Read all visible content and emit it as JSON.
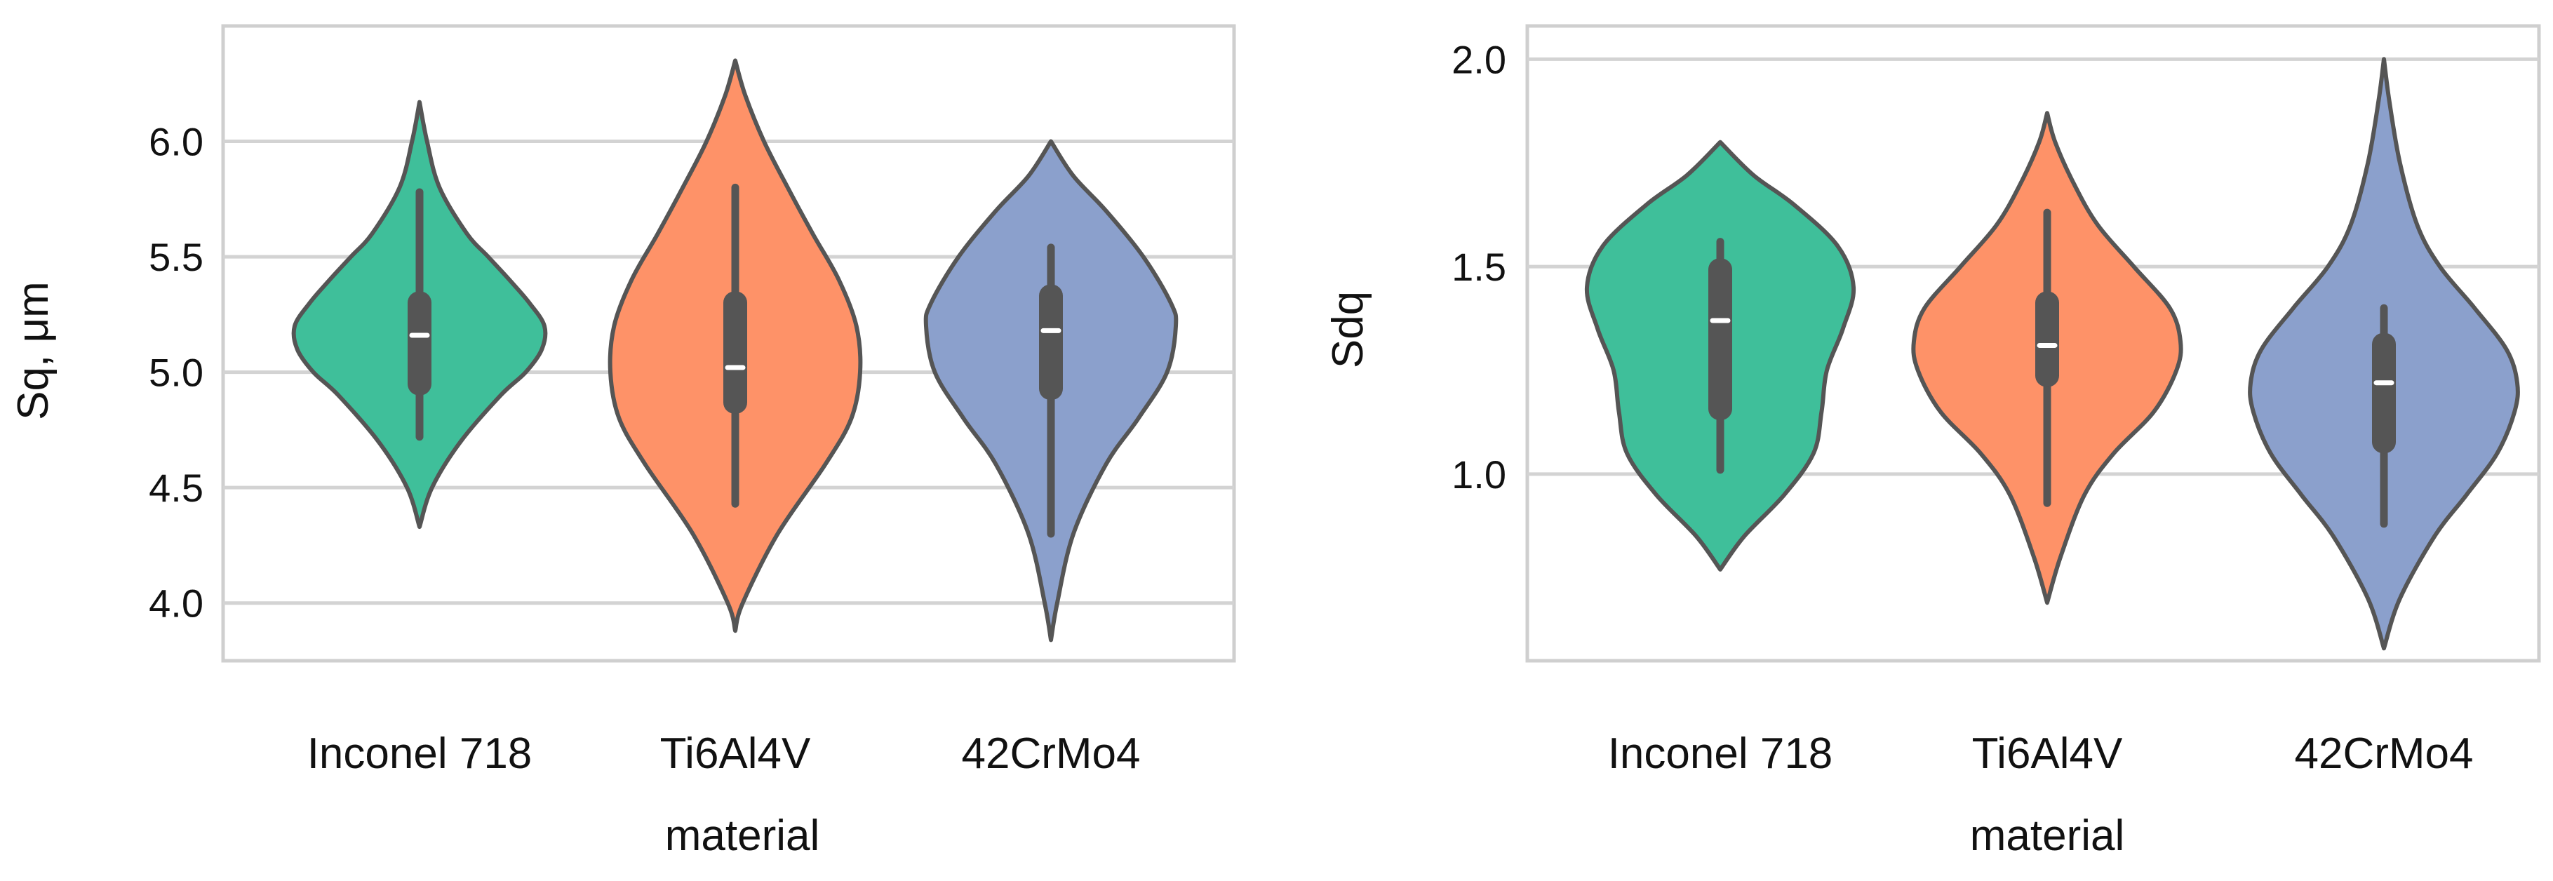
{
  "chart_data": [
    {
      "type": "violin",
      "xlabel": "material",
      "ylabel": "Sq, μm",
      "categories": [
        "Inconel 718",
        "Ti6Al4V",
        "42CrMo4"
      ],
      "yticks": [
        4.0,
        4.5,
        5.0,
        5.5,
        6.0
      ],
      "ytick_labels": [
        "4.0",
        "4.5",
        "5.0",
        "5.5",
        "6.0"
      ],
      "ylim": [
        3.75,
        6.5
      ],
      "grid": "horizontal",
      "colors": [
        "#3fbf9a",
        "#fe9268",
        "#8ba0cc"
      ],
      "violins": [
        {
          "min": 4.33,
          "max": 6.17,
          "whisker_low": 4.72,
          "q1": 4.9,
          "median": 5.16,
          "q3": 5.35,
          "whisker_high": 5.78,
          "density_y": [
            4.33,
            4.5,
            4.7,
            4.9,
            5.0,
            5.1,
            5.2,
            5.3,
            5.4,
            5.5,
            5.6,
            5.8,
            6.0,
            6.17
          ],
          "density_w": [
            0.0,
            0.1,
            0.33,
            0.65,
            0.85,
            0.98,
            1.0,
            0.88,
            0.72,
            0.55,
            0.38,
            0.16,
            0.06,
            0.0
          ]
        },
        {
          "min": 3.88,
          "max": 6.35,
          "whisker_low": 4.43,
          "q1": 4.82,
          "median": 5.02,
          "q3": 5.35,
          "whisker_high": 5.8,
          "density_y": [
            3.88,
            4.0,
            4.3,
            4.6,
            4.8,
            5.0,
            5.2,
            5.4,
            5.6,
            5.8,
            6.0,
            6.2,
            6.35
          ],
          "density_w": [
            0.0,
            0.06,
            0.34,
            0.72,
            0.93,
            1.0,
            0.97,
            0.83,
            0.62,
            0.42,
            0.23,
            0.08,
            0.0
          ]
        },
        {
          "min": 3.84,
          "max": 6.0,
          "whisker_low": 4.3,
          "q1": 4.88,
          "median": 5.18,
          "q3": 5.38,
          "whisker_high": 5.54,
          "density_y": [
            3.84,
            4.0,
            4.3,
            4.6,
            4.8,
            5.0,
            5.2,
            5.3,
            5.5,
            5.7,
            5.85,
            6.0
          ],
          "density_w": [
            0.0,
            0.05,
            0.18,
            0.44,
            0.7,
            0.93,
            1.0,
            0.96,
            0.74,
            0.44,
            0.18,
            0.0
          ]
        }
      ]
    },
    {
      "type": "violin",
      "xlabel": "material",
      "ylabel": "Sdq",
      "categories": [
        "Inconel 718",
        "Ti6Al4V",
        "42CrMo4"
      ],
      "yticks": [
        1.0,
        1.5,
        2.0
      ],
      "ytick_labels": [
        "1.0",
        "1.5",
        "2.0"
      ],
      "ylim": [
        0.55,
        2.08
      ],
      "grid": "horizontal",
      "colors": [
        "#3fbf9a",
        "#fe9268",
        "#8ba0cc"
      ],
      "violins": [
        {
          "min": 0.77,
          "max": 1.8,
          "whisker_low": 1.01,
          "q1": 1.13,
          "median": 1.37,
          "q3": 1.52,
          "whisker_high": 1.56,
          "density_y": [
            0.77,
            0.85,
            0.95,
            1.05,
            1.15,
            1.25,
            1.35,
            1.45,
            1.55,
            1.65,
            1.72,
            1.8
          ],
          "density_w": [
            0.0,
            0.18,
            0.48,
            0.7,
            0.76,
            0.8,
            0.92,
            1.0,
            0.88,
            0.55,
            0.25,
            0.0
          ]
        },
        {
          "min": 0.69,
          "max": 1.87,
          "whisker_low": 0.93,
          "q1": 1.21,
          "median": 1.31,
          "q3": 1.44,
          "whisker_high": 1.63,
          "density_y": [
            0.69,
            0.8,
            0.95,
            1.05,
            1.15,
            1.25,
            1.32,
            1.4,
            1.5,
            1.6,
            1.7,
            1.8,
            1.87
          ],
          "density_w": [
            0.0,
            0.1,
            0.28,
            0.5,
            0.8,
            0.97,
            1.0,
            0.92,
            0.65,
            0.38,
            0.2,
            0.06,
            0.0
          ]
        },
        {
          "min": 0.58,
          "max": 2.0,
          "whisker_low": 0.88,
          "q1": 1.05,
          "median": 1.22,
          "q3": 1.34,
          "whisker_high": 1.4,
          "density_y": [
            0.58,
            0.7,
            0.85,
            0.95,
            1.05,
            1.15,
            1.22,
            1.3,
            1.4,
            1.5,
            1.6,
            1.75,
            1.9,
            2.0
          ],
          "density_w": [
            0.0,
            0.12,
            0.38,
            0.62,
            0.85,
            0.98,
            1.0,
            0.92,
            0.68,
            0.42,
            0.25,
            0.12,
            0.04,
            0.0
          ]
        }
      ]
    }
  ]
}
